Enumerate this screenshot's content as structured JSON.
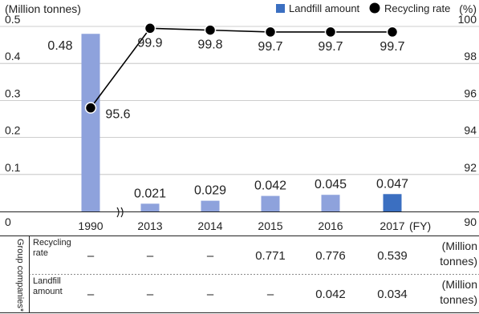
{
  "chart_data": {
    "type": "bar",
    "ylabel_left": "(Million tonnes)",
    "ylabel_right": "(%)",
    "x_unit": "(FY)",
    "categories": [
      "1990",
      "2013",
      "2014",
      "2015",
      "2016",
      "2017"
    ],
    "left_axis": {
      "ylim": [
        0,
        0.5
      ],
      "ticks": [
        "0",
        "0.1",
        "0.2",
        "0.3",
        "0.4",
        "0.5"
      ]
    },
    "right_axis": {
      "ylim": [
        90,
        100
      ],
      "ticks": [
        "90",
        "92",
        "94",
        "96",
        "98",
        "100"
      ]
    },
    "series": [
      {
        "name": "Landfill amount",
        "type": "bar",
        "axis": "left",
        "values": [
          0.48,
          0.021,
          0.029,
          0.042,
          0.045,
          0.047
        ],
        "labels": [
          "0.48",
          "0.021",
          "0.029",
          "0.042",
          "0.045",
          "0.047"
        ],
        "color": "#8ea2dc",
        "highlight_color": "#3b6fc1"
      },
      {
        "name": "Recycling rate",
        "type": "line",
        "axis": "right",
        "values": [
          95.6,
          99.9,
          99.8,
          99.7,
          99.7,
          99.7
        ],
        "labels": [
          "95.6",
          "99.9",
          "99.8",
          "99.7",
          "99.7",
          "99.7"
        ],
        "color": "#000000"
      }
    ],
    "axis_break_between": [
      "1990",
      "2013"
    ],
    "legend_position": "top-right",
    "grid": "horizontal"
  },
  "table": {
    "group_label": "Group companies*",
    "rows": [
      {
        "label": "Recycling rate",
        "values": [
          "–",
          "–",
          "–",
          "0.771",
          "0.776",
          "0.539"
        ],
        "unit_line1": "(Million",
        "unit_line2": "tonnes)"
      },
      {
        "label": "Landfill amount",
        "values": [
          "–",
          "–",
          "–",
          "–",
          "0.042",
          "0.034"
        ],
        "unit_line1": "(Million",
        "unit_line2": "tonnes)"
      }
    ]
  }
}
